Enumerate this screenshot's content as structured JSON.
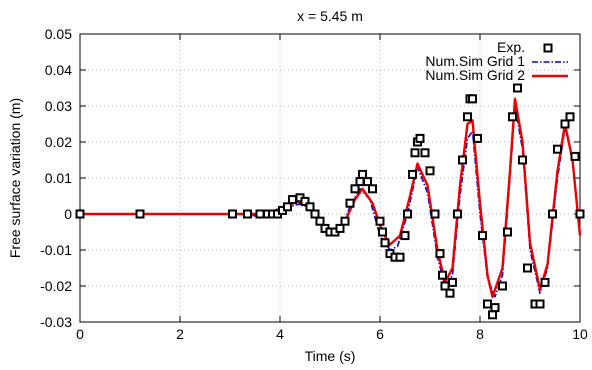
{
  "chart_data": {
    "type": "line",
    "title": "x = 5.45 m",
    "xlabel": "Time (s)",
    "ylabel": "Free surface variation (m)",
    "xlim": [
      0,
      10
    ],
    "ylim": [
      -0.03,
      0.05
    ],
    "xticks": [
      0,
      2,
      4,
      6,
      8,
      10
    ],
    "yticks": [
      -0.03,
      -0.02,
      -0.01,
      0,
      0.01,
      0.02,
      0.03,
      0.04,
      0.05
    ],
    "xtick_labels": [
      "0",
      "2",
      "4",
      "6",
      "8",
      "10"
    ],
    "ytick_labels": [
      "-0.03",
      "-0.02",
      "-0.01",
      "0",
      "0.01",
      "0.02",
      "0.03",
      "0.04",
      "0.05"
    ],
    "grid": true,
    "legend_position": "top-right",
    "series": [
      {
        "name": "Exp.",
        "style": "scatter",
        "marker": "square",
        "color": "#000000",
        "points": [
          [
            0.0,
            0.0
          ],
          [
            1.2,
            0.0
          ],
          [
            3.05,
            0.0
          ],
          [
            3.35,
            0.0
          ],
          [
            3.6,
            0.0
          ],
          [
            3.75,
            0.0
          ],
          [
            3.85,
            0.0
          ],
          [
            3.95,
            0.0
          ],
          [
            4.05,
            0.001
          ],
          [
            4.15,
            0.002
          ],
          [
            4.25,
            0.004
          ],
          [
            4.4,
            0.0045
          ],
          [
            4.5,
            0.0035
          ],
          [
            4.6,
            0.002
          ],
          [
            4.7,
            0.0
          ],
          [
            4.8,
            -0.002
          ],
          [
            4.9,
            -0.004
          ],
          [
            5.0,
            -0.005
          ],
          [
            5.1,
            -0.005
          ],
          [
            5.2,
            -0.004
          ],
          [
            5.3,
            -0.002
          ],
          [
            5.4,
            0.003
          ],
          [
            5.5,
            0.007
          ],
          [
            5.6,
            0.009
          ],
          [
            5.65,
            0.011
          ],
          [
            5.75,
            0.009
          ],
          [
            5.85,
            0.007
          ],
          [
            6.0,
            -0.002
          ],
          [
            6.05,
            -0.005
          ],
          [
            6.1,
            -0.008
          ],
          [
            6.2,
            -0.011
          ],
          [
            6.3,
            -0.012
          ],
          [
            6.4,
            -0.012
          ],
          [
            6.5,
            -0.006
          ],
          [
            6.55,
            0.0
          ],
          [
            6.65,
            0.011
          ],
          [
            6.7,
            0.017
          ],
          [
            6.75,
            0.02
          ],
          [
            6.8,
            0.021
          ],
          [
            6.9,
            0.017
          ],
          [
            7.0,
            0.012
          ],
          [
            7.1,
            0.0
          ],
          [
            7.2,
            -0.011
          ],
          [
            7.25,
            -0.017
          ],
          [
            7.3,
            -0.02
          ],
          [
            7.4,
            -0.022
          ],
          [
            7.45,
            -0.019
          ],
          [
            7.55,
            0.0
          ],
          [
            7.65,
            0.015
          ],
          [
            7.75,
            0.027
          ],
          [
            7.8,
            0.032
          ],
          [
            7.85,
            0.032
          ],
          [
            7.95,
            0.021
          ],
          [
            8.05,
            -0.006
          ],
          [
            8.15,
            -0.025
          ],
          [
            8.25,
            -0.028
          ],
          [
            8.3,
            -0.026
          ],
          [
            8.45,
            -0.02
          ],
          [
            8.55,
            -0.005
          ],
          [
            8.65,
            0.027
          ],
          [
            8.75,
            0.035
          ],
          [
            8.85,
            0.015
          ],
          [
            8.95,
            -0.015
          ],
          [
            9.1,
            -0.025
          ],
          [
            9.2,
            -0.025
          ],
          [
            9.3,
            -0.019
          ],
          [
            9.45,
            0.0
          ],
          [
            9.55,
            0.018
          ],
          [
            9.7,
            0.025
          ],
          [
            9.8,
            0.027
          ],
          [
            9.9,
            0.016
          ],
          [
            10.0,
            0.0
          ]
        ]
      },
      {
        "name": "Num.Sim Grid 1",
        "style": "dashdot",
        "color": "#0000cc",
        "points": [
          [
            0.0,
            0.0
          ],
          [
            3.2,
            0.0
          ],
          [
            3.5,
            -0.0005
          ],
          [
            3.7,
            -0.001
          ],
          [
            4.0,
            0.0005
          ],
          [
            4.3,
            0.0025
          ],
          [
            4.5,
            0.003
          ],
          [
            4.7,
            0.0
          ],
          [
            4.9,
            -0.004
          ],
          [
            5.05,
            -0.0055
          ],
          [
            5.2,
            -0.005
          ],
          [
            5.4,
            0.002
          ],
          [
            5.6,
            0.007
          ],
          [
            5.8,
            0.004
          ],
          [
            6.0,
            -0.006
          ],
          [
            6.2,
            -0.01
          ],
          [
            6.35,
            -0.009
          ],
          [
            6.55,
            0.0
          ],
          [
            6.75,
            0.013
          ],
          [
            6.95,
            0.006
          ],
          [
            7.15,
            -0.012
          ],
          [
            7.3,
            -0.02
          ],
          [
            7.45,
            -0.017
          ],
          [
            7.6,
            0.005
          ],
          [
            7.75,
            0.021
          ],
          [
            7.85,
            0.023
          ],
          [
            8.0,
            0.0
          ],
          [
            8.15,
            -0.018
          ],
          [
            8.3,
            -0.023
          ],
          [
            8.45,
            -0.017
          ],
          [
            8.6,
            0.01
          ],
          [
            8.7,
            0.03
          ],
          [
            8.85,
            0.018
          ],
          [
            9.0,
            -0.01
          ],
          [
            9.2,
            -0.022
          ],
          [
            9.35,
            -0.015
          ],
          [
            9.55,
            0.01
          ],
          [
            9.7,
            0.024
          ],
          [
            9.85,
            0.015
          ],
          [
            10.0,
            -0.005
          ]
        ]
      },
      {
        "name": "Num.Sim Grid 2",
        "style": "solid",
        "color": "#ee0000",
        "points": [
          [
            0.0,
            0.0
          ],
          [
            3.2,
            0.0
          ],
          [
            3.5,
            0.0
          ],
          [
            3.8,
            0.0005
          ],
          [
            4.1,
            0.002
          ],
          [
            4.35,
            0.0035
          ],
          [
            4.55,
            0.002
          ],
          [
            4.75,
            -0.001
          ],
          [
            4.95,
            -0.004
          ],
          [
            5.1,
            -0.0045
          ],
          [
            5.3,
            -0.002
          ],
          [
            5.5,
            0.004
          ],
          [
            5.65,
            0.007
          ],
          [
            5.85,
            0.003
          ],
          [
            6.05,
            -0.005
          ],
          [
            6.2,
            -0.0085
          ],
          [
            6.4,
            -0.006
          ],
          [
            6.6,
            0.005
          ],
          [
            6.75,
            0.014
          ],
          [
            6.95,
            0.008
          ],
          [
            7.15,
            -0.01
          ],
          [
            7.3,
            -0.019
          ],
          [
            7.45,
            -0.015
          ],
          [
            7.6,
            0.008
          ],
          [
            7.75,
            0.025
          ],
          [
            7.85,
            0.026
          ],
          [
            8.0,
            0.003
          ],
          [
            8.15,
            -0.017
          ],
          [
            8.25,
            -0.023
          ],
          [
            8.45,
            -0.015
          ],
          [
            8.6,
            0.012
          ],
          [
            8.7,
            0.032
          ],
          [
            8.85,
            0.02
          ],
          [
            9.0,
            -0.008
          ],
          [
            9.2,
            -0.021
          ],
          [
            9.35,
            -0.014
          ],
          [
            9.55,
            0.012
          ],
          [
            9.7,
            0.025
          ],
          [
            9.85,
            0.015
          ],
          [
            10.0,
            -0.006
          ]
        ]
      }
    ]
  }
}
